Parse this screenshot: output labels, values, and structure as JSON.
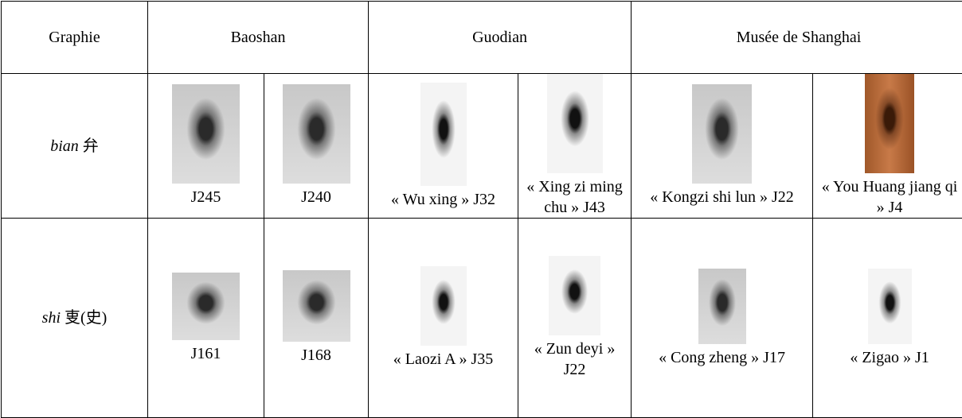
{
  "table": {
    "header": [
      "Graphie",
      "Baoshan",
      "Guodian",
      "Musée de Shanghai"
    ],
    "rows": [
      {
        "label": {
          "latin": "bian",
          "hanzi": "弁"
        },
        "captions": [
          "J245",
          "J240",
          "« Wu xing » J32",
          "« Xing zi ming chu » J43",
          "« Kongzi shi lun » J22",
          "« You Huang jiang qi » J4"
        ]
      },
      {
        "label": {
          "latin": "shi",
          "hanzi": "叓",
          "note": "(史)"
        },
        "captions": [
          "J161",
          "J168",
          "« Laozi A » J35",
          "« Zun deyi » J22",
          "« Cong zheng » J17",
          "« Zigao » J1"
        ]
      }
    ]
  }
}
